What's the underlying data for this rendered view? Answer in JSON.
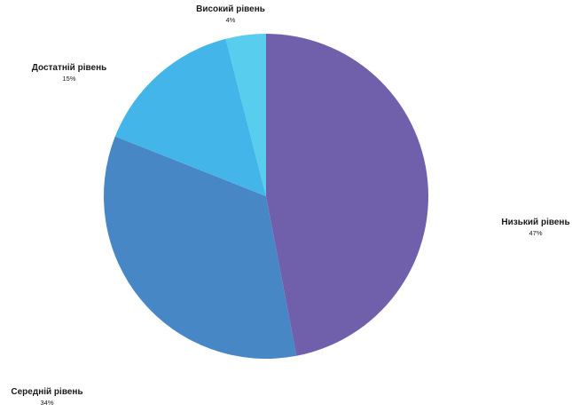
{
  "chart_data": {
    "type": "pie",
    "title": "",
    "start_angle_deg": 0,
    "direction": "clockwise",
    "slices": [
      {
        "label": "Низький рівень",
        "value": 47,
        "display": "47%",
        "color": "#7060ab"
      },
      {
        "label": "Середній рівень",
        "value": 34,
        "display": "34%",
        "color": "#4887c6"
      },
      {
        "label": "Достатній рівень",
        "value": 15,
        "display": "15%",
        "color": "#43b5e9"
      },
      {
        "label": "Високий рівень",
        "value": 4,
        "display": "4%",
        "color": "#58cdee"
      }
    ]
  }
}
